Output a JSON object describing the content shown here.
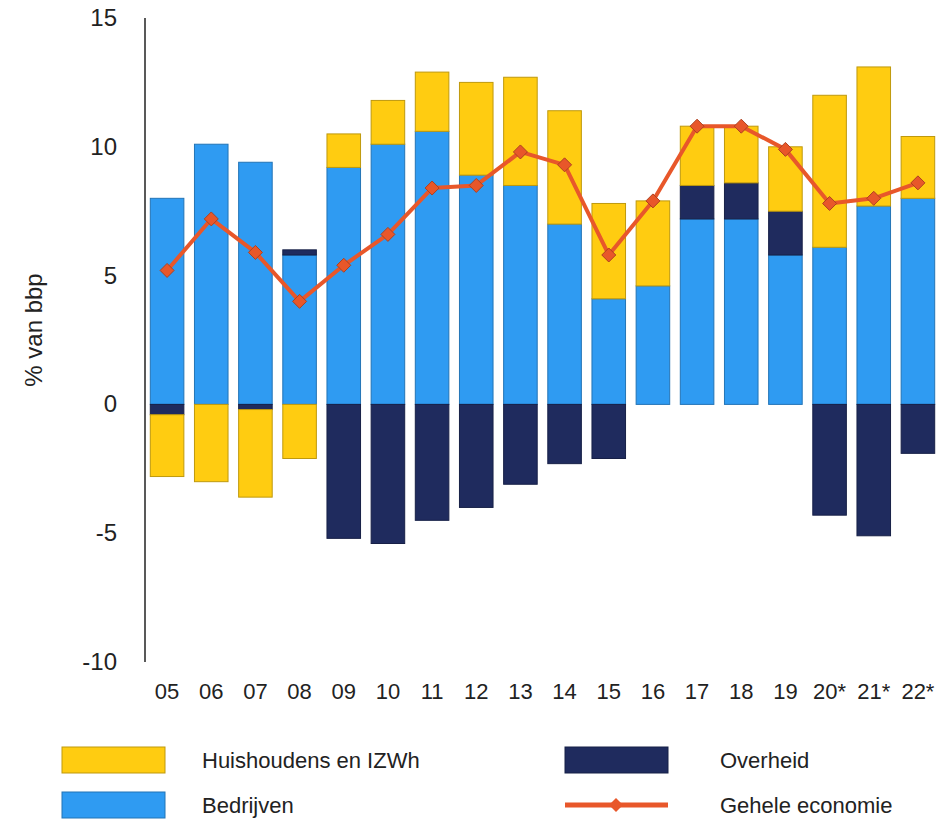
{
  "chart_data": {
    "type": "bar",
    "stacked": true,
    "y_label": "% van bbp",
    "categories": [
      "05",
      "06",
      "07",
      "08",
      "09",
      "10",
      "11",
      "12",
      "13",
      "14",
      "15",
      "16",
      "17",
      "18",
      "19",
      "20*",
      "21*",
      "22*"
    ],
    "ylim": [
      -10,
      15
    ],
    "yticks": [
      -10,
      -5,
      0,
      5,
      10,
      15
    ],
    "grid": false,
    "legend": "bottom",
    "series": [
      {
        "name": "Bedrijven",
        "color": "#2f9bf2",
        "values": [
          8.0,
          10.1,
          9.4,
          5.8,
          9.2,
          10.1,
          10.6,
          8.9,
          8.5,
          7.0,
          4.1,
          4.6,
          7.2,
          7.2,
          5.8,
          6.1,
          7.7,
          8.0
        ]
      },
      {
        "name": "Overheid",
        "color": "#1f2b5e",
        "values": [
          -0.4,
          0,
          -0.2,
          0.2,
          -5.2,
          -5.4,
          -4.5,
          -4.0,
          -3.1,
          -2.3,
          -2.1,
          0,
          1.3,
          1.4,
          1.7,
          -4.3,
          -5.1,
          -1.9
        ]
      },
      {
        "name": "Huishoudens en IZWh",
        "color": "#ffcc11",
        "values": [
          -2.4,
          -3.0,
          -3.4,
          -2.1,
          1.3,
          1.7,
          2.3,
          3.6,
          4.2,
          4.4,
          3.7,
          3.3,
          2.3,
          2.2,
          2.5,
          5.9,
          5.4,
          2.4
        ]
      },
      {
        "name": "Gehele economie",
        "color": "#e8572a",
        "type": "line",
        "marker": "diamond",
        "values": [
          5.2,
          7.2,
          5.9,
          4.0,
          5.4,
          6.6,
          8.4,
          8.5,
          9.8,
          9.3,
          5.8,
          7.9,
          10.8,
          10.8,
          9.9,
          7.8,
          8.0,
          8.6
        ]
      }
    ]
  }
}
